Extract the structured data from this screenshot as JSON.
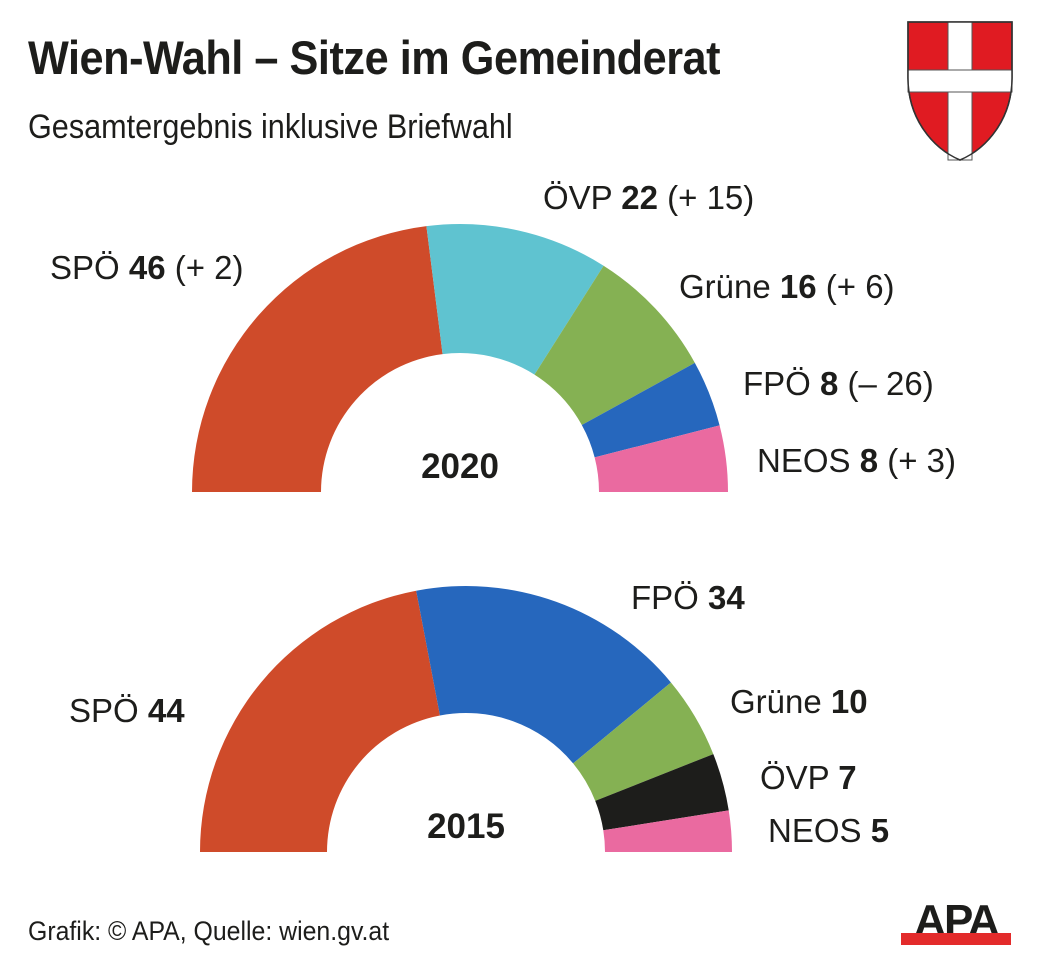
{
  "header": {
    "title": "Wien-Wahl – Sitze im Gemeinderat",
    "subtitle": "Gesamtergebnis inklusive Briefwahl",
    "crest_icon": "vienna-coat-of-arms-icon"
  },
  "footer": {
    "credit": "Grafik: © APA, Quelle: wien.gv.at",
    "logo_text": "APA"
  },
  "colors": {
    "SPÖ": "#cf4b2a",
    "ÖVP_2020": "#5fc3d0",
    "ÖVP_2015": "#1d1d1b",
    "Grüne": "#85b153",
    "FPÖ": "#2667bd",
    "NEOS": "#ea6aa0",
    "crest_red": "#e01b22",
    "apa_red": "#e32b2b"
  },
  "chart_data": [
    {
      "type": "pie",
      "subtype": "half-donut",
      "title": "2020",
      "total_seats": 100,
      "slices": [
        {
          "party": "SPÖ",
          "seats": 46,
          "change": "(+ 2)",
          "color": "#cf4b2a"
        },
        {
          "party": "ÖVP",
          "seats": 22,
          "change": "(+ 15)",
          "color": "#5fc3d0"
        },
        {
          "party": "Grüne",
          "seats": 16,
          "change": "(+ 6)",
          "color": "#85b153"
        },
        {
          "party": "FPÖ",
          "seats": 8,
          "change": "(– 26)",
          "color": "#2667bd"
        },
        {
          "party": "NEOS",
          "seats": 8,
          "change": "(+ 3)",
          "color": "#ea6aa0"
        }
      ]
    },
    {
      "type": "pie",
      "subtype": "half-donut",
      "title": "2015",
      "total_seats": 100,
      "slices": [
        {
          "party": "SPÖ",
          "seats": 44,
          "change": "",
          "color": "#cf4b2a"
        },
        {
          "party": "FPÖ",
          "seats": 34,
          "change": "",
          "color": "#2667bd"
        },
        {
          "party": "Grüne",
          "seats": 10,
          "change": "",
          "color": "#85b153"
        },
        {
          "party": "ÖVP",
          "seats": 7,
          "change": "",
          "color": "#1d1d1b"
        },
        {
          "party": "NEOS",
          "seats": 5,
          "change": "",
          "color": "#ea6aa0"
        }
      ]
    }
  ]
}
